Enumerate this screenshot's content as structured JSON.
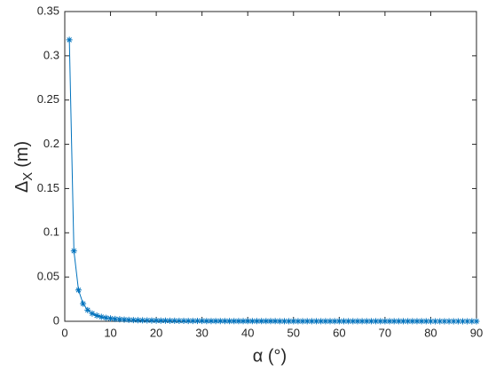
{
  "chart_data": {
    "type": "line",
    "xlabel": "α (°)",
    "ylabel": {
      "symbol": "Δ",
      "subscript": "X",
      "unit": "(m)"
    },
    "x": [
      1,
      2,
      3,
      4,
      5,
      6,
      7,
      8,
      9,
      10,
      11,
      12,
      13,
      14,
      15,
      16,
      17,
      18,
      19,
      20,
      21,
      22,
      23,
      24,
      25,
      26,
      27,
      28,
      29,
      30,
      31,
      32,
      33,
      34,
      35,
      36,
      37,
      38,
      39,
      40,
      41,
      42,
      43,
      44,
      45,
      46,
      47,
      48,
      49,
      50,
      51,
      52,
      53,
      54,
      55,
      56,
      57,
      58,
      59,
      60,
      61,
      62,
      63,
      64,
      65,
      66,
      67,
      68,
      69,
      70,
      71,
      72,
      73,
      74,
      75,
      76,
      77,
      78,
      79,
      80,
      81,
      82,
      83,
      84,
      85,
      86,
      87,
      88,
      89,
      90
    ],
    "values": [
      0.318,
      0.0795,
      0.0353,
      0.0199,
      0.0127,
      0.0088,
      0.0065,
      0.005,
      0.0039,
      0.0032,
      0.0026,
      0.0022,
      0.0019,
      0.0016,
      0.0014,
      0.0012,
      0.0011,
      0.001,
      0.0009,
      0.0008,
      0.0007,
      0.0007,
      0.0006,
      0.0006,
      0.0005,
      0.0005,
      0.0004,
      0.0004,
      0.0004,
      0.0004,
      0.0003,
      0.0003,
      0.0003,
      0.0003,
      0.0003,
      0.0002,
      0.0002,
      0.0002,
      0.0002,
      0.0002,
      0.0002,
      0.0002,
      0.0002,
      0.0002,
      0.0002,
      0.0002,
      0.0001,
      0.0001,
      0.0001,
      0.0001,
      0.0001,
      0.0001,
      0.0001,
      0.0001,
      0.0001,
      0.0001,
      0.0001,
      0.0001,
      0.0001,
      0.0001,
      0.0001,
      0.0001,
      0.0001,
      0.0001,
      0.0001,
      0.0001,
      0.0001,
      0.0001,
      0.0001,
      0.0001,
      0.0001,
      0.0001,
      0.0001,
      0.0001,
      0.0001,
      0.0001,
      0.0001,
      0.0001,
      0.0001,
      0,
      0,
      0,
      0,
      0,
      0,
      0,
      0,
      0,
      0,
      0
    ],
    "color": "#0072bd",
    "marker": "*",
    "xlim": [
      0,
      90
    ],
    "xticks": [
      0,
      10,
      20,
      30,
      40,
      50,
      60,
      70,
      80,
      90
    ],
    "ylim": [
      0,
      0.35
    ],
    "yticks": [
      0,
      0.05,
      0.1,
      0.15,
      0.2,
      0.25,
      0.3,
      0.35
    ]
  }
}
